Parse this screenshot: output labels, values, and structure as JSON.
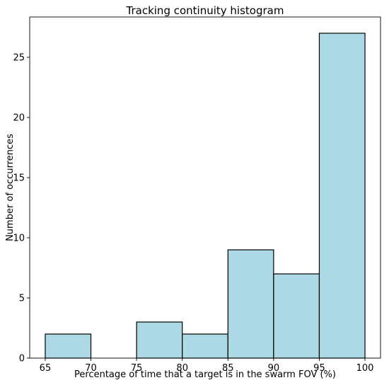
{
  "chart_data": {
    "type": "bar",
    "title": "Tracking continuity histogram",
    "xlabel": "Percentage of time that a target is in the swarm FOV (%)",
    "ylabel": "Number of occurrences",
    "bins": [
      {
        "start": 65,
        "end": 70,
        "count": 2
      },
      {
        "start": 70,
        "end": 75,
        "count": 0
      },
      {
        "start": 75,
        "end": 80,
        "count": 3
      },
      {
        "start": 80,
        "end": 85,
        "count": 2
      },
      {
        "start": 85,
        "end": 90,
        "count": 9
      },
      {
        "start": 90,
        "end": 95,
        "count": 7
      },
      {
        "start": 95,
        "end": 100,
        "count": 27
      }
    ],
    "xlim": [
      63.3,
      101.7
    ],
    "ylim": [
      0,
      28.35
    ],
    "xticks": [
      65,
      70,
      75,
      80,
      85,
      90,
      95,
      100
    ],
    "yticks": [
      0,
      5,
      10,
      15,
      20,
      25
    ],
    "bar_color": "#add8e6",
    "edge_color": "#000000",
    "grid": false
  }
}
